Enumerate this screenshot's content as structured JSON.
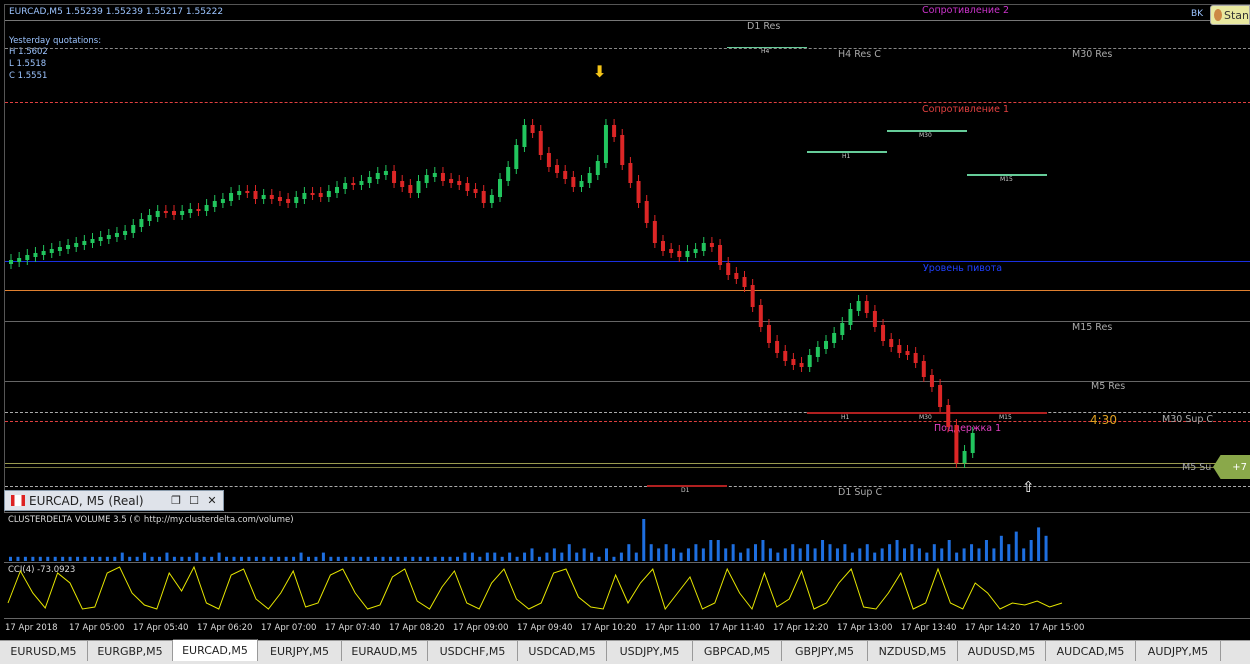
{
  "symbol_info": "EURCAD,M5  1.55239 1.55239 1.55217 1.55222",
  "yesterday": {
    "title": "Yesterday quotations:",
    "high": "H 1.5602",
    "low": "L 1.5518",
    "close": "C 1.5551"
  },
  "top_right_label": "BK",
  "stan_label": "Stan",
  "levels": {
    "resistance2": "Сопротивление 2",
    "d1_res": "D1 Res",
    "h4_res_c": "H4 Res C",
    "m30_res": "M30 Res",
    "resistance1": "Сопротивление 1",
    "pivot": "Уровень пивота",
    "m15_res": "M15 Res",
    "m5_res": "M5 Res",
    "m30_sup_c": "M30 Sup C",
    "support1": "Поддержка 1",
    "m5_sup": "M5 Su",
    "d1_sup_c": "D1 Sup C",
    "timer": "4:30",
    "plus_badge": "+7"
  },
  "small_tags": {
    "h4": "H4",
    "h1": "H1",
    "m30": "M30",
    "m15": "M15",
    "h1_low": "H1",
    "m30_low": "M30",
    "m15_low": "M15",
    "d1_low": "D1"
  },
  "subwindow": {
    "title": "EURCAD, M5 (Real)"
  },
  "volume_indicator": {
    "title": "CLUSTERDELTA VOLUME 3.5 (© http://my.clusterdelta.com/volume)",
    "values": [
      1,
      1,
      1,
      1,
      1,
      1,
      1,
      1,
      1,
      1,
      1,
      1,
      1,
      1,
      1,
      2,
      1,
      1,
      2,
      1,
      1,
      2,
      1,
      1,
      1,
      2,
      1,
      1,
      2,
      1,
      1,
      1,
      1,
      1,
      1,
      1,
      1,
      1,
      1,
      2,
      1,
      1,
      2,
      1,
      1,
      1,
      1,
      1,
      1,
      1,
      1,
      1,
      1,
      1,
      1,
      1,
      1,
      1,
      1,
      1,
      1,
      2,
      2,
      1,
      2,
      2,
      1,
      2,
      1,
      2,
      3,
      1,
      2,
      3,
      2,
      4,
      2,
      3,
      2,
      1,
      3,
      1,
      2,
      4,
      2,
      10,
      4,
      3,
      4,
      3,
      2,
      3,
      4,
      3,
      5,
      5,
      3,
      4,
      2,
      3,
      4,
      5,
      3,
      2,
      3,
      4,
      3,
      4,
      3,
      5,
      4,
      3,
      4,
      2,
      3,
      4,
      2,
      3,
      4,
      5,
      3,
      4,
      3,
      2,
      4,
      3,
      5,
      2,
      3,
      4,
      3,
      5,
      3,
      6,
      4,
      7,
      3,
      5,
      8,
      6
    ]
  },
  "cci_indicator": {
    "title": "CCI(4) -73.0923"
  },
  "time_axis": [
    "17 Apr 2018",
    "17 Apr 05:00",
    "17 Apr 05:40",
    "17 Apr 06:20",
    "17 Apr 07:00",
    "17 Apr 07:40",
    "17 Apr 08:20",
    "17 Apr 09:00",
    "17 Apr 09:40",
    "17 Apr 10:20",
    "17 Apr 11:00",
    "17 Apr 11:40",
    "17 Apr 12:20",
    "17 Apr 13:00",
    "17 Apr 13:40",
    "17 Apr 14:20",
    "17 Apr 15:00"
  ],
  "tabs": [
    {
      "label": "EURUSD,M5",
      "active": false
    },
    {
      "label": "EURGBP,M5",
      "active": false
    },
    {
      "label": "EURCAD,M5",
      "active": true
    },
    {
      "label": "EURJPY,M5",
      "active": false
    },
    {
      "label": "EURAUD,M5",
      "active": false
    },
    {
      "label": "USDCHF,M5",
      "active": false
    },
    {
      "label": "USDCAD,M5",
      "active": false
    },
    {
      "label": "USDJPY,M5",
      "active": false
    },
    {
      "label": "GBPCAD,M5",
      "active": false
    },
    {
      "label": "GBPJPY,M5",
      "active": false
    },
    {
      "label": "NZDUSD,M5",
      "active": false
    },
    {
      "label": "AUDUSD,M5",
      "active": false
    },
    {
      "label": "AUDCAD,M5",
      "active": false
    },
    {
      "label": "AUDJPY,M5",
      "active": false
    }
  ],
  "colors": {
    "bull": "#22c55e",
    "bear": "#dc2626",
    "volume": "#1e6fe0",
    "cci": "#e6e600",
    "resistance": "#e04040",
    "pivot": "#1a30e0",
    "support": "#e040c0"
  }
}
